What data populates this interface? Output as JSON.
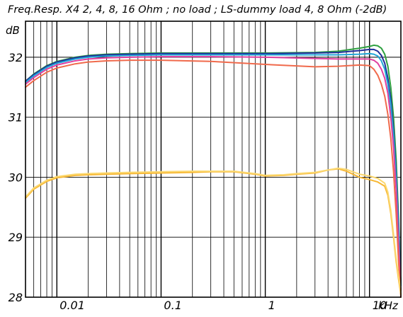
{
  "chart_data": {
    "type": "line",
    "title": "Freq.Resp. X4 2, 4, 8, 16 Ohm ; no load ; LS-dummy load 4, 8 Ohm (-2dB)",
    "ylabel": "dB",
    "xlabel": "",
    "x_unit_label": "kHz",
    "x_scale": "log",
    "xlim": [
      0.005,
      20
    ],
    "ylim": [
      28,
      32.6
    ],
    "y_ticks": [
      28,
      29,
      30,
      31,
      32
    ],
    "y_tick_labels": [
      "28",
      "29",
      "30",
      "31",
      "32"
    ],
    "x_ticks": [
      0.01,
      0.1,
      1,
      10
    ],
    "x_tick_labels": [
      "0.01",
      "0.1",
      "1",
      "10"
    ],
    "grid": true,
    "series": [
      {
        "color": "#2ea040",
        "x": [
          0.005,
          0.006,
          0.008,
          0.01,
          0.015,
          0.02,
          0.03,
          0.05,
          0.1,
          0.3,
          1,
          3,
          5,
          8,
          10,
          11,
          12,
          13,
          14,
          15,
          16,
          17,
          18,
          19,
          20
        ],
        "y": [
          31.6,
          31.72,
          31.86,
          31.93,
          32.0,
          32.03,
          32.05,
          32.06,
          32.07,
          32.07,
          32.07,
          32.08,
          32.1,
          32.15,
          32.18,
          32.2,
          32.19,
          32.15,
          32.05,
          31.85,
          31.5,
          31.0,
          30.3,
          29.3,
          28.2
        ]
      },
      {
        "color": "#1e2e9a",
        "x": [
          0.005,
          0.006,
          0.008,
          0.01,
          0.015,
          0.02,
          0.03,
          0.05,
          0.1,
          0.3,
          1,
          3,
          5,
          8,
          10,
          11,
          12,
          13,
          14,
          15,
          16,
          17,
          18,
          19,
          20
        ],
        "y": [
          31.6,
          31.71,
          31.85,
          31.92,
          31.99,
          32.02,
          32.04,
          32.05,
          32.06,
          32.06,
          32.06,
          32.07,
          32.08,
          32.11,
          32.13,
          32.13,
          32.1,
          32.03,
          31.9,
          31.65,
          31.3,
          30.8,
          30.1,
          29.2,
          28.2
        ]
      },
      {
        "color": "#22a6d6",
        "x": [
          0.005,
          0.006,
          0.008,
          0.01,
          0.015,
          0.02,
          0.03,
          0.05,
          0.1,
          0.3,
          1,
          3,
          5,
          8,
          10,
          11,
          12,
          13,
          14,
          15,
          16,
          17,
          18,
          19,
          20
        ],
        "y": [
          31.58,
          31.69,
          31.83,
          31.9,
          31.97,
          32.0,
          32.02,
          32.03,
          32.04,
          32.04,
          32.04,
          32.04,
          32.04,
          32.05,
          32.06,
          32.05,
          32.02,
          31.94,
          31.8,
          31.55,
          31.2,
          30.7,
          30.0,
          29.1,
          28.2
        ]
      },
      {
        "color": "#e040a0",
        "x": [
          0.005,
          0.006,
          0.008,
          0.01,
          0.015,
          0.02,
          0.03,
          0.05,
          0.1,
          0.3,
          1,
          3,
          5,
          8,
          10,
          11,
          12,
          13,
          14,
          15,
          16,
          17,
          18,
          19,
          20
        ],
        "y": [
          31.55,
          31.66,
          31.8,
          31.87,
          31.94,
          31.97,
          31.99,
          32.0,
          32.01,
          32.01,
          32.0,
          31.98,
          31.97,
          31.97,
          31.97,
          31.95,
          31.9,
          31.8,
          31.65,
          31.4,
          31.0,
          30.5,
          29.8,
          28.9,
          28.1
        ]
      },
      {
        "color": "#f06a4c",
        "x": [
          0.005,
          0.006,
          0.008,
          0.01,
          0.015,
          0.02,
          0.03,
          0.05,
          0.1,
          0.3,
          1,
          3,
          5,
          8,
          10,
          11,
          12,
          13,
          14,
          15,
          16,
          17,
          18,
          19,
          20
        ],
        "y": [
          31.5,
          31.61,
          31.75,
          31.82,
          31.89,
          31.92,
          31.94,
          31.95,
          31.95,
          31.93,
          31.88,
          31.84,
          31.85,
          31.87,
          31.86,
          31.8,
          31.7,
          31.55,
          31.35,
          31.05,
          30.65,
          30.1,
          29.4,
          28.6,
          28.0
        ]
      },
      {
        "color": "#f7b733",
        "x": [
          0.005,
          0.006,
          0.008,
          0.01,
          0.015,
          0.02,
          0.03,
          0.05,
          0.1,
          0.2,
          0.3,
          0.5,
          0.8,
          1,
          1.5,
          2,
          3,
          4,
          5,
          6,
          8,
          10,
          12,
          14,
          15,
          16,
          17,
          18,
          19,
          20
        ],
        "y": [
          29.65,
          29.8,
          29.93,
          29.99,
          30.03,
          30.04,
          30.05,
          30.06,
          30.07,
          30.08,
          30.09,
          30.09,
          30.05,
          30.02,
          30.03,
          30.05,
          30.07,
          30.12,
          30.14,
          30.1,
          30.0,
          29.96,
          29.92,
          29.85,
          29.7,
          29.4,
          29.0,
          28.6,
          28.3,
          28.05
        ]
      },
      {
        "color": "#fbd870",
        "x": [
          0.005,
          0.006,
          0.008,
          0.01,
          0.015,
          0.02,
          0.03,
          0.05,
          0.1,
          0.2,
          0.3,
          0.5,
          0.8,
          1,
          1.5,
          2,
          3,
          4,
          5,
          6,
          8,
          10,
          12,
          14,
          15,
          16,
          17,
          18,
          19,
          20
        ],
        "y": [
          29.67,
          29.82,
          29.95,
          30.01,
          30.05,
          30.06,
          30.07,
          30.08,
          30.09,
          30.1,
          30.1,
          30.1,
          30.06,
          30.03,
          30.04,
          30.06,
          30.08,
          30.12,
          30.15,
          30.13,
          30.05,
          30.02,
          29.98,
          29.9,
          29.75,
          29.45,
          29.05,
          28.65,
          28.35,
          28.1
        ]
      }
    ]
  }
}
